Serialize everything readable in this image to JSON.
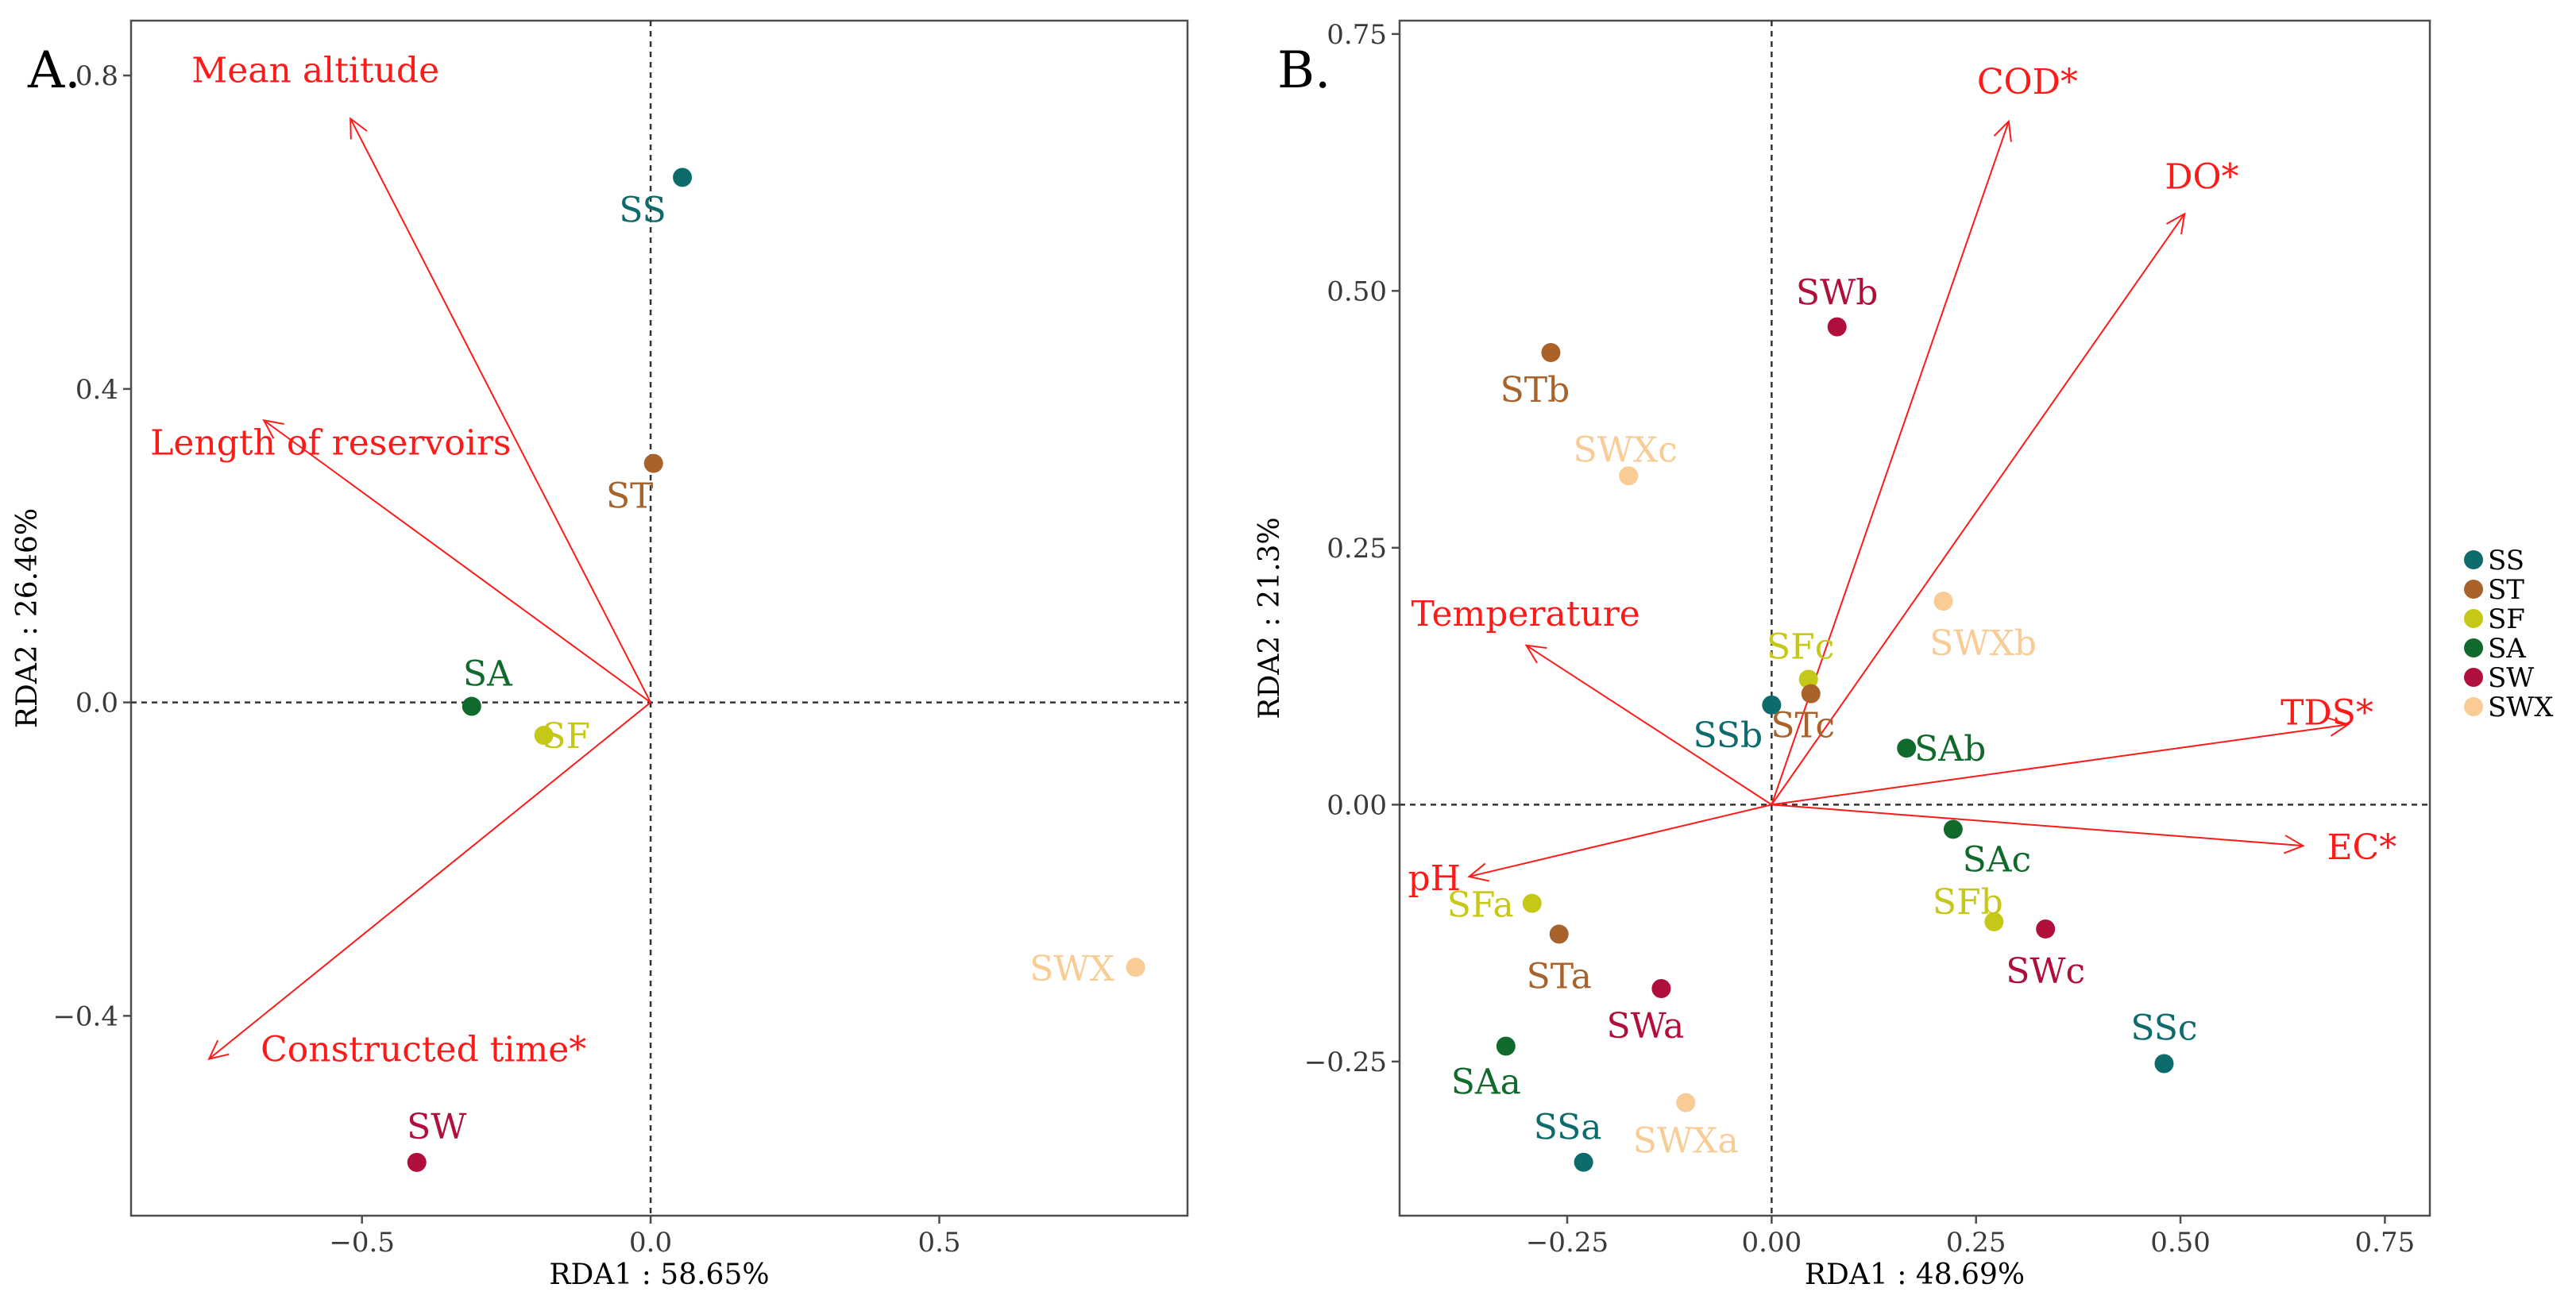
{
  "colors": {
    "SS": "#0e6b6b",
    "ST": "#a8622a",
    "SF": "#c6c818",
    "SA": "#0f6a2b",
    "SW": "#b00f3c",
    "SWX": "#f9cb95",
    "arrow": "#ff1a1a"
  },
  "legend": [
    "SS",
    "ST",
    "SF",
    "SA",
    "SW",
    "SWX"
  ],
  "chart_data": [
    {
      "type": "scatter",
      "panel_label": "A.",
      "xlabel": "RDA1 : 58.65%",
      "ylabel": "RDA2 : 26.46%",
      "xlim": [
        -0.9,
        0.93
      ],
      "ylim": [
        -0.655,
        0.87
      ],
      "x_ticks": [
        -0.5,
        0.0,
        0.5
      ],
      "x_tick_labels": [
        "−0.5",
        "0.0",
        "0.5"
      ],
      "y_ticks": [
        -0.4,
        0.0,
        0.4,
        0.8
      ],
      "y_tick_labels": [
        "−0.4",
        "0.0",
        "0.4",
        "0.8"
      ],
      "points": [
        {
          "label": "SS",
          "group": "SS",
          "x": 0.055,
          "y": 0.67
        },
        {
          "label": "ST",
          "group": "ST",
          "x": 0.005,
          "y": 0.305
        },
        {
          "label": "SA",
          "group": "SA",
          "x": -0.31,
          "y": -0.005
        },
        {
          "label": "SF",
          "group": "SF",
          "x": -0.185,
          "y": -0.042
        },
        {
          "label": "SWX",
          "group": "SWX",
          "x": 0.84,
          "y": -0.338
        },
        {
          "label": "SW",
          "group": "SW",
          "x": -0.405,
          "y": -0.587
        }
      ],
      "arrows": [
        {
          "label": "Mean altitude",
          "x": -0.52,
          "y": 0.745
        },
        {
          "label": "Length of reservoirs",
          "x": -0.67,
          "y": 0.36
        },
        {
          "label": "Constructed time*",
          "x": -0.765,
          "y": -0.455
        }
      ]
    },
    {
      "type": "scatter",
      "panel_label": "B.",
      "xlabel": "RDA1 : 48.69%",
      "ylabel": "RDA2 : 21.3%",
      "xlim": [
        -0.455,
        0.805
      ],
      "ylim": [
        -0.4,
        0.763
      ],
      "x_ticks": [
        -0.25,
        0.0,
        0.25,
        0.5,
        0.75
      ],
      "x_tick_labels": [
        "−0.25",
        "0.00",
        "0.25",
        "0.50",
        "0.75"
      ],
      "y_ticks": [
        -0.25,
        0.0,
        0.25,
        0.5,
        0.75
      ],
      "y_tick_labels": [
        "−0.25",
        "0.00",
        "0.25",
        "0.50",
        "0.75"
      ],
      "points": [
        {
          "label": "SWb",
          "group": "SW",
          "x": 0.08,
          "y": 0.465
        },
        {
          "label": "STb",
          "group": "ST",
          "x": -0.27,
          "y": 0.44
        },
        {
          "label": "SWXc",
          "group": "SWX",
          "x": -0.175,
          "y": 0.32
        },
        {
          "label": "SWXb",
          "group": "SWX",
          "x": 0.21,
          "y": 0.198
        },
        {
          "label": "SFc",
          "group": "SF",
          "x": 0.045,
          "y": 0.122
        },
        {
          "label": "STc",
          "group": "ST",
          "x": 0.048,
          "y": 0.108
        },
        {
          "label": "SSb",
          "group": "SS",
          "x": 0.0,
          "y": 0.097
        },
        {
          "label": "SAb",
          "group": "SA",
          "x": 0.165,
          "y": 0.055
        },
        {
          "label": "SAc",
          "group": "SA",
          "x": 0.222,
          "y": -0.024
        },
        {
          "label": "SFb",
          "group": "SF",
          "x": 0.272,
          "y": -0.114
        },
        {
          "label": "SWc",
          "group": "SW",
          "x": 0.335,
          "y": -0.121
        },
        {
          "label": "SFa",
          "group": "SF",
          "x": -0.293,
          "y": -0.096
        },
        {
          "label": "STa",
          "group": "ST",
          "x": -0.26,
          "y": -0.126
        },
        {
          "label": "SWa",
          "group": "SW",
          "x": -0.135,
          "y": -0.179
        },
        {
          "label": "SAa",
          "group": "SA",
          "x": -0.325,
          "y": -0.235
        },
        {
          "label": "SSc",
          "group": "SS",
          "x": 0.48,
          "y": -0.252
        },
        {
          "label": "SWXa",
          "group": "SWX",
          "x": -0.105,
          "y": -0.29
        },
        {
          "label": "SSa",
          "group": "SS",
          "x": -0.23,
          "y": -0.348
        }
      ],
      "arrows": [
        {
          "label": "COD*",
          "x": 0.29,
          "y": 0.665
        },
        {
          "label": "DO*",
          "x": 0.505,
          "y": 0.575
        },
        {
          "label": "Temperature",
          "x": -0.3,
          "y": 0.155
        },
        {
          "label": "TDS*",
          "x": 0.705,
          "y": 0.078
        },
        {
          "label": "EC*",
          "x": 0.65,
          "y": -0.04
        },
        {
          "label": "pH",
          "x": -0.37,
          "y": -0.07
        }
      ]
    }
  ]
}
